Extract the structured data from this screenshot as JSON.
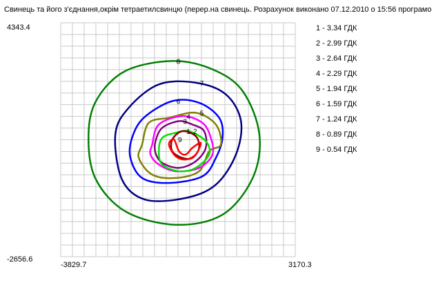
{
  "chart_data": {
    "type": "contour",
    "title": "Свинець та його з'єднання,окрім тетраетилсвинцю (перер.на свинець. Розрахунок виконано 07.12.2010 о 15:56 програмо",
    "x_range": [
      -3829.7,
      3170.3
    ],
    "y_range": [
      -2656.6,
      4343.4
    ],
    "x_tick_labels": [
      "-3829.7",
      "3170.3"
    ],
    "y_tick_labels": [
      "4343.4",
      "-2656.6"
    ],
    "grid": true,
    "legend_position": "right",
    "levels": [
      {
        "id": "1",
        "label": "1 - 3.34 ГДК",
        "value": 3.34,
        "color": "#ff0000"
      },
      {
        "id": "2",
        "label": "2 - 2.99 ГДК",
        "value": 2.99,
        "color": "#8b0000"
      },
      {
        "id": "3",
        "label": "3 - 2.64 ГДК",
        "value": 2.64,
        "color": "#00e000"
      },
      {
        "id": "4",
        "label": "4 - 2.29 ГДК",
        "value": 2.29,
        "color": "#800080"
      },
      {
        "id": "5",
        "label": "5 - 1.94 ГДК",
        "value": 1.94,
        "color": "#ff00ff"
      },
      {
        "id": "6",
        "label": "6 - 1.59 ГДК",
        "value": 1.59,
        "color": "#808000"
      },
      {
        "id": "7",
        "label": "7 - 1.24 ГДК",
        "value": 1.24,
        "color": "#0000ff"
      },
      {
        "id": "8",
        "label": "8 - 0.89 ГДК",
        "value": 0.89,
        "color": "#000080"
      },
      {
        "id": "9",
        "label": "9 - 0.54 ГДК",
        "value": 0.54,
        "color": "#008000"
      }
    ],
    "contours": [
      {
        "label": "8",
        "color": "#008000",
        "points": [
          [
            -3000,
            1000
          ],
          [
            -2750,
            2050
          ],
          [
            -1900,
            2900
          ],
          [
            -500,
            3200
          ],
          [
            700,
            2950
          ],
          [
            1600,
            2300
          ],
          [
            2100,
            1000
          ],
          [
            1900,
            -300
          ],
          [
            1000,
            -1400
          ],
          [
            -400,
            -1700
          ],
          [
            -1900,
            -1300
          ],
          [
            -2800,
            -300
          ]
        ]
      },
      {
        "label": "7",
        "color": "#000080",
        "points": [
          [
            -2200,
            1000
          ],
          [
            -1800,
            1800
          ],
          [
            -900,
            2500
          ],
          [
            200,
            2550
          ],
          [
            1100,
            2200
          ],
          [
            1550,
            1400
          ],
          [
            1400,
            400
          ],
          [
            800,
            -500
          ],
          [
            -100,
            -900
          ],
          [
            -1300,
            -950
          ],
          [
            -2000,
            -350
          ]
        ]
      },
      {
        "label": "6",
        "color": "#0000ff",
        "points": [
          [
            -1700,
            900
          ],
          [
            -1350,
            1500
          ],
          [
            -500,
            2000
          ],
          [
            300,
            1950
          ],
          [
            900,
            1500
          ],
          [
            1000,
            900
          ],
          [
            800,
            300
          ],
          [
            400,
            -250
          ],
          [
            -600,
            -450
          ],
          [
            -1400,
            -300
          ],
          [
            -1750,
            300
          ]
        ]
      },
      {
        "label": "5",
        "color": "#808000",
        "points": [
          [
            -1400,
            700
          ],
          [
            -1200,
            1350
          ],
          [
            -600,
            1500
          ],
          [
            200,
            1650
          ],
          [
            800,
            1300
          ],
          [
            950,
            700
          ],
          [
            600,
            500
          ],
          [
            300,
            -100
          ],
          [
            -400,
            -300
          ],
          [
            -1100,
            -200
          ],
          [
            -1500,
            300
          ]
        ]
      },
      {
        "label": "4",
        "color": "#ff00ff",
        "points": [
          [
            -1100,
            700
          ],
          [
            -900,
            1300
          ],
          [
            -200,
            1550
          ],
          [
            400,
            1350
          ],
          [
            650,
            900
          ],
          [
            700,
            400
          ],
          [
            300,
            0
          ],
          [
            -400,
            -100
          ],
          [
            -900,
            100
          ],
          [
            -1150,
            400
          ]
        ]
      },
      {
        "label": "3",
        "color": "#800080",
        "points": [
          [
            -1000,
            800
          ],
          [
            -800,
            1200
          ],
          [
            -300,
            1400
          ],
          [
            100,
            1300
          ],
          [
            450,
            1100
          ],
          [
            500,
            600
          ],
          [
            200,
            200
          ],
          [
            -300,
            0
          ],
          [
            -800,
            150
          ],
          [
            -1000,
            450
          ]
        ]
      },
      {
        "label": "2",
        "color": "#00e000",
        "points": [
          [
            -800,
            900
          ],
          [
            -400,
            1050
          ],
          [
            0,
            1100
          ],
          [
            500,
            800
          ],
          [
            600,
            400
          ],
          [
            200,
            0
          ],
          [
            -300,
            -100
          ],
          [
            -800,
            100
          ],
          [
            -900,
            500
          ]
        ]
      },
      {
        "label": "1",
        "color": "#8b0000",
        "points": [
          [
            -500,
            850
          ],
          [
            -200,
            1100
          ],
          [
            200,
            950
          ],
          [
            300,
            600
          ],
          [
            100,
            300
          ],
          [
            -200,
            300
          ],
          [
            -500,
            500
          ]
        ]
      },
      {
        "label": "9",
        "color": "#ff0000",
        "points": [
          [
            -600,
            700
          ],
          [
            -450,
            850
          ],
          [
            -300,
            500
          ],
          [
            -100,
            400
          ],
          [
            100,
            600
          ],
          [
            350,
            750
          ],
          [
            200,
            400
          ],
          [
            -100,
            250
          ],
          [
            -400,
            350
          ]
        ]
      }
    ]
  }
}
